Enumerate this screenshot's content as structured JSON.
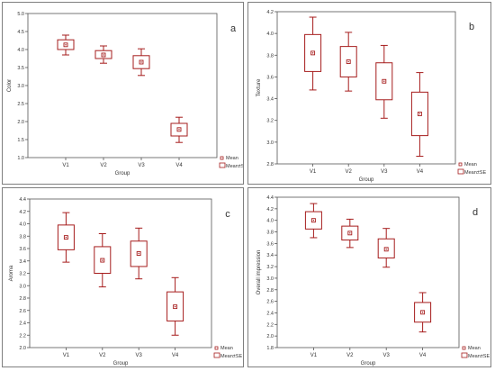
{
  "colors": {
    "box": "#a61c1c",
    "axis": "#555555",
    "border": "#7f7f7f"
  },
  "legend": {
    "mean": "Mean",
    "box": "Mean±SE"
  },
  "chart_data": [
    {
      "panel": "a",
      "type": "box",
      "ylabel": "Color",
      "xlabel": "Group",
      "categories": [
        "V1",
        "V2",
        "V3",
        "V4"
      ],
      "ylim": [
        1.0,
        5.0
      ],
      "yticks": [
        "1.0",
        "1.5",
        "2.0",
        "2.5",
        "3.0",
        "3.5",
        "4.0",
        "4.5",
        "5.0"
      ],
      "legend_position": "bottom-right",
      "groups": [
        {
          "mean": 4.13,
          "se_low": 4.0,
          "se_high": 4.27,
          "low": 3.85,
          "high": 4.4
        },
        {
          "mean": 3.85,
          "se_low": 3.75,
          "se_high": 3.97,
          "low": 3.62,
          "high": 4.1
        },
        {
          "mean": 3.65,
          "se_low": 3.47,
          "se_high": 3.83,
          "low": 3.28,
          "high": 4.02
        },
        {
          "mean": 1.78,
          "se_low": 1.6,
          "se_high": 1.95,
          "low": 1.42,
          "high": 2.12
        }
      ]
    },
    {
      "panel": "b",
      "type": "box",
      "ylabel": "Texture",
      "xlabel": "Group",
      "categories": [
        "V1",
        "V2",
        "V3",
        "V4"
      ],
      "ylim": [
        2.8,
        4.2
      ],
      "yticks": [
        "2.8",
        "3.0",
        "3.2",
        "3.4",
        "3.6",
        "3.8",
        "4.0",
        "4.2"
      ],
      "legend_position": "bottom-right",
      "groups": [
        {
          "mean": 3.82,
          "se_low": 3.65,
          "se_high": 3.99,
          "low": 3.48,
          "high": 4.15
        },
        {
          "mean": 3.74,
          "se_low": 3.6,
          "se_high": 3.88,
          "low": 3.47,
          "high": 4.01
        },
        {
          "mean": 3.56,
          "se_low": 3.39,
          "se_high": 3.73,
          "low": 3.22,
          "high": 3.89
        },
        {
          "mean": 3.26,
          "se_low": 3.06,
          "se_high": 3.46,
          "low": 2.87,
          "high": 3.64
        }
      ]
    },
    {
      "panel": "c",
      "type": "box",
      "ylabel": "Aroma",
      "xlabel": "Group",
      "categories": [
        "V1",
        "V2",
        "V3",
        "V4"
      ],
      "ylim": [
        2.0,
        4.4
      ],
      "yticks": [
        "2.0",
        "2.2",
        "2.4",
        "2.6",
        "2.8",
        "3.0",
        "3.2",
        "3.4",
        "3.6",
        "3.8",
        "4.0",
        "4.2",
        "4.4"
      ],
      "legend_position": "bottom-right",
      "groups": [
        {
          "mean": 3.78,
          "se_low": 3.58,
          "se_high": 3.98,
          "low": 3.38,
          "high": 4.18
        },
        {
          "mean": 3.41,
          "se_low": 3.2,
          "se_high": 3.63,
          "low": 2.98,
          "high": 3.84
        },
        {
          "mean": 3.52,
          "se_low": 3.31,
          "se_high": 3.72,
          "low": 3.11,
          "high": 3.93
        },
        {
          "mean": 2.66,
          "se_low": 2.43,
          "se_high": 2.9,
          "low": 2.2,
          "high": 3.13
        }
      ]
    },
    {
      "panel": "d",
      "type": "box",
      "ylabel": "Overall impression",
      "xlabel": "Group",
      "categories": [
        "V1",
        "V2",
        "V3",
        "V4"
      ],
      "ylim": [
        1.8,
        4.4
      ],
      "yticks": [
        "1.8",
        "2.0",
        "2.2",
        "2.4",
        "2.6",
        "2.8",
        "3.0",
        "3.2",
        "3.4",
        "3.6",
        "3.8",
        "4.0",
        "4.2",
        "4.4"
      ],
      "legend_position": "bottom-right",
      "groups": [
        {
          "mean": 4.0,
          "se_low": 3.85,
          "se_high": 4.15,
          "low": 3.7,
          "high": 4.29
        },
        {
          "mean": 3.78,
          "se_low": 3.66,
          "se_high": 3.9,
          "low": 3.53,
          "high": 4.02
        },
        {
          "mean": 3.5,
          "se_low": 3.35,
          "se_high": 3.68,
          "low": 3.19,
          "high": 3.86
        },
        {
          "mean": 2.41,
          "se_low": 2.24,
          "se_high": 2.58,
          "low": 2.07,
          "high": 2.75
        }
      ]
    }
  ]
}
